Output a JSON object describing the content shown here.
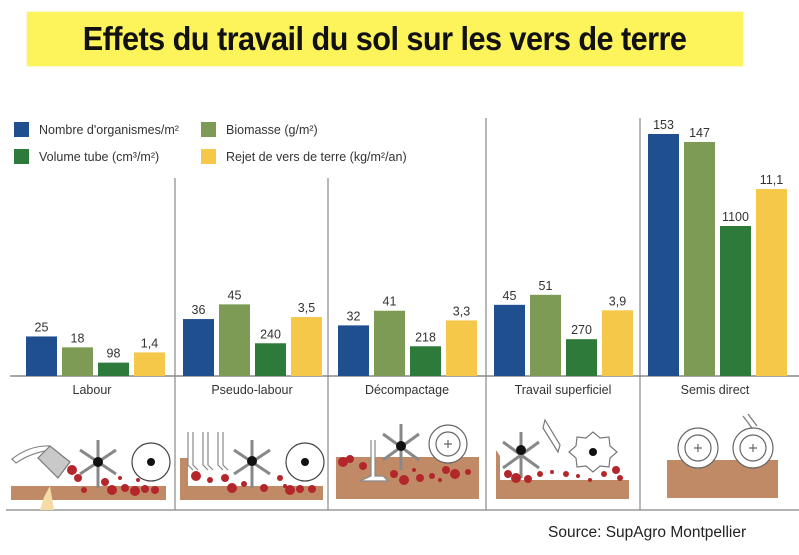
{
  "title": "Effets du travail du sol sur les vers de terre",
  "source": "Source: SupAgro Montpellier",
  "colors": {
    "title_bg": "#fdf35a",
    "organismes": "#1f4f8f",
    "biomasse": "#7d9b55",
    "volume": "#2e7a3a",
    "rejet": "#f6c84a",
    "soil": "#c08a66",
    "worm": "#b3262b"
  },
  "legend": [
    {
      "key": "organismes",
      "label": "Nombre d'organismes/m²"
    },
    {
      "key": "biomasse",
      "label": "Biomasse (g/m²)"
    },
    {
      "key": "volume",
      "label": "Volume tube (cm³/m²)"
    },
    {
      "key": "rejet",
      "label": "Rejet de vers de terre (kg/m²/an)"
    }
  ],
  "chart_data": {
    "type": "bar",
    "title": "Effets du travail du sol sur les vers de terre",
    "xlabel": "",
    "ylabel": "",
    "grid": false,
    "legend_position": "top-left",
    "note": "Each series uses its own independent scale (no y axis shown)",
    "categories": [
      "Labour",
      "Pseudo-labour",
      "Décompactage",
      "Travail superficiel",
      "Semis direct"
    ],
    "series": [
      {
        "key": "organismes",
        "name": "Nombre d'organismes/m²",
        "values": [
          25,
          36,
          32,
          45,
          153
        ],
        "labels": [
          "25",
          "36",
          "32",
          "45",
          "153"
        ],
        "ylim": [
          0,
          153
        ]
      },
      {
        "key": "biomasse",
        "name": "Biomasse (g/m²)",
        "values": [
          18,
          45,
          41,
          51,
          147
        ],
        "labels": [
          "18",
          "45",
          "41",
          "51",
          "147"
        ],
        "ylim": [
          0,
          147
        ]
      },
      {
        "key": "volume",
        "name": "Volume tube (cm³/m²)",
        "values": [
          98,
          240,
          218,
          270,
          1100
        ],
        "labels": [
          "98",
          "240",
          "218",
          "270",
          "1100"
        ],
        "ylim": [
          0,
          1100
        ]
      },
      {
        "key": "rejet",
        "name": "Rejet de vers de terre (kg/m²/an)",
        "values": [
          1.4,
          3.5,
          3.3,
          3.9,
          11.1
        ],
        "labels": [
          "1,4",
          "3,5",
          "3,3",
          "3,9",
          "11,1"
        ],
        "ylim": [
          0,
          11.1
        ]
      }
    ]
  },
  "illustrations": [
    {
      "category": "Labour",
      "tools": [
        "plough",
        "rotary-harrow",
        "roller"
      ]
    },
    {
      "category": "Pseudo-labour",
      "tools": [
        "tines",
        "rotary-harrow",
        "roller"
      ]
    },
    {
      "category": "Décompactage",
      "tools": [
        "subsoiler",
        "rotary-harrow",
        "packer-roller"
      ]
    },
    {
      "category": "Travail superficiel",
      "tools": [
        "rotary-harrow",
        "disc",
        "star-roller"
      ]
    },
    {
      "category": "Semis direct",
      "tools": [
        "seeder-wheel",
        "seeder-wheel"
      ]
    }
  ]
}
